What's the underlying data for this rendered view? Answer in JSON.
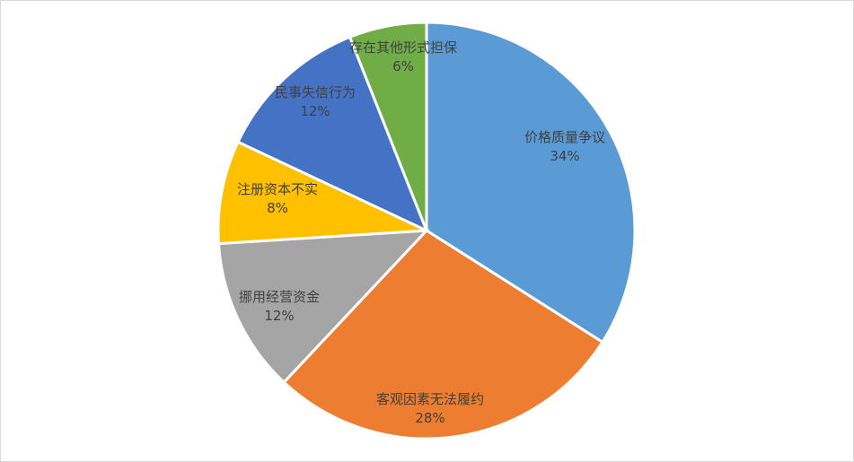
{
  "chart_data": {
    "type": "pie",
    "title": "",
    "start_angle": "12 o'clock",
    "direction": "clockwise",
    "legend": "none",
    "slices": [
      {
        "label": "价格质量争议",
        "value": 34,
        "display": "34%",
        "color": "#5b9bd5"
      },
      {
        "label": "客观因素无法履约",
        "value": 28,
        "display": "28%",
        "color": "#ed7d31"
      },
      {
        "label": "挪用经营资金",
        "value": 12,
        "display": "12%",
        "color": "#a5a5a5"
      },
      {
        "label": "注册资本不实",
        "value": 8,
        "display": "8%",
        "color": "#ffc000"
      },
      {
        "label": "民事失信行为",
        "value": 12,
        "display": "12%",
        "color": "#4472c4"
      },
      {
        "label": "存在其他形式担保",
        "value": 6,
        "display": "6%",
        "color": "#70ad47"
      }
    ]
  }
}
